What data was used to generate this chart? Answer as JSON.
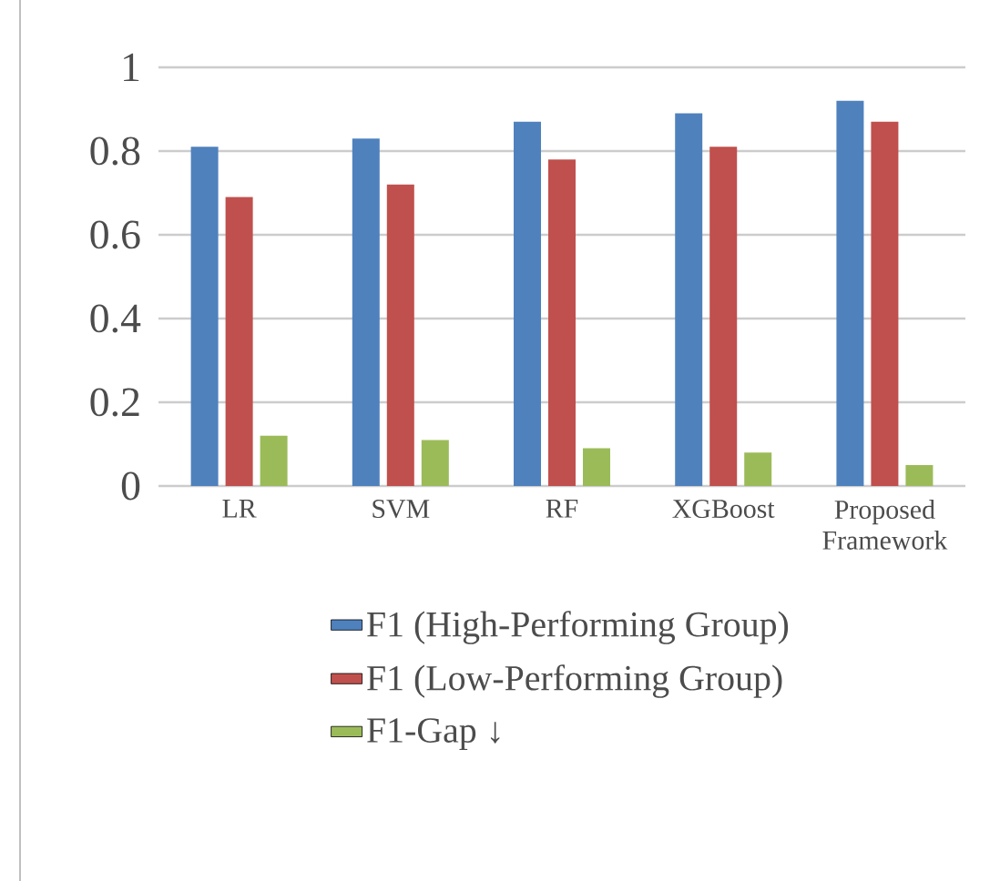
{
  "chart_data": {
    "type": "bar",
    "categories": [
      "LR",
      "SVM",
      "RF",
      "XGBoost",
      "Proposed Framework"
    ],
    "series": [
      {
        "name": "F1 (High-Performing Group)",
        "color": "#4f81bd",
        "values": [
          0.81,
          0.83,
          0.87,
          0.89,
          0.92
        ]
      },
      {
        "name": "F1 (Low-Performing Group)",
        "color": "#c0504d",
        "values": [
          0.69,
          0.72,
          0.78,
          0.81,
          0.87
        ]
      },
      {
        "name": "F1-Gap ↓",
        "color": "#9bbb59",
        "values": [
          0.12,
          0.11,
          0.09,
          0.08,
          0.05
        ]
      }
    ],
    "ylim": [
      0,
      1
    ],
    "yticks": [
      0,
      0.2,
      0.4,
      0.6,
      0.8,
      1
    ],
    "grid": "y",
    "legend": "bottom"
  }
}
